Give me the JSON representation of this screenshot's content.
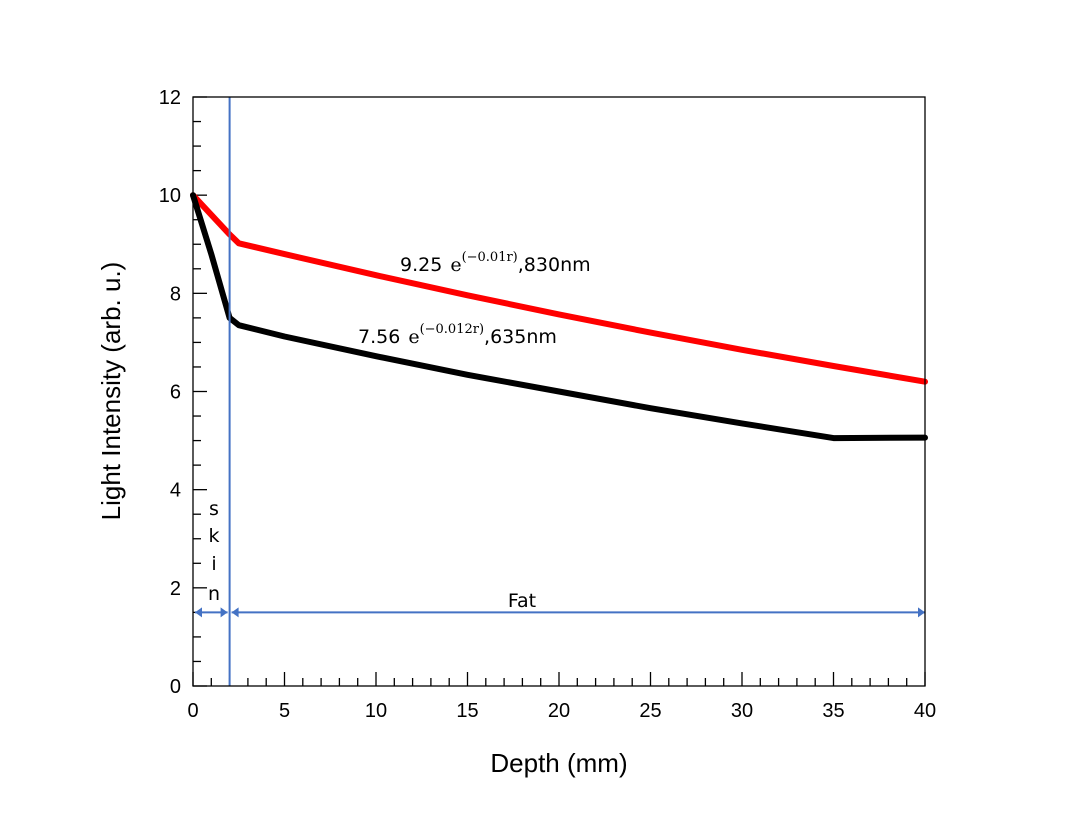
{
  "chart_data": {
    "type": "line",
    "xlabel": "Depth (mm)",
    "ylabel": "Light Intensity (arb. u.)",
    "xlim": [
      0,
      40
    ],
    "ylim": [
      0,
      12
    ],
    "xticks": [
      0,
      5,
      10,
      15,
      20,
      25,
      30,
      35,
      40
    ],
    "yticks": [
      0,
      2,
      4,
      6,
      8,
      10,
      12
    ],
    "grid": false,
    "series": [
      {
        "name": "830nm",
        "color": "#ff0000",
        "x": [
          0,
          1,
          2,
          2.5,
          5,
          10,
          15,
          20,
          25,
          30,
          35,
          40
        ],
        "y": [
          10.0,
          9.6,
          9.2,
          9.02,
          8.8,
          8.37,
          7.96,
          7.57,
          7.2,
          6.85,
          6.52,
          6.2
        ]
      },
      {
        "name": "635nm",
        "color": "#000000",
        "x": [
          0,
          1,
          2,
          2.5,
          5,
          10,
          15,
          20,
          25,
          30,
          35,
          40
        ],
        "y": [
          10.0,
          8.8,
          7.5,
          7.35,
          7.12,
          6.72,
          6.34,
          6.0,
          5.66,
          5.35,
          5.05,
          5.06
        ]
      }
    ],
    "annotations": {
      "curve_830": {
        "coef": "9.25",
        "base": "e",
        "exponent": "(−0.01r)",
        "suffix": ",830nm"
      },
      "curve_635": {
        "coef": "7.56",
        "base": "e",
        "exponent": "(−0.012r)",
        "suffix": ",635nm"
      },
      "skin_letters": [
        "s",
        "k",
        "i",
        "n"
      ],
      "fat_label": "Fat",
      "boundary_x": 2,
      "region_arrow_y": 1.5,
      "annotation_color": "#4472c4"
    }
  }
}
